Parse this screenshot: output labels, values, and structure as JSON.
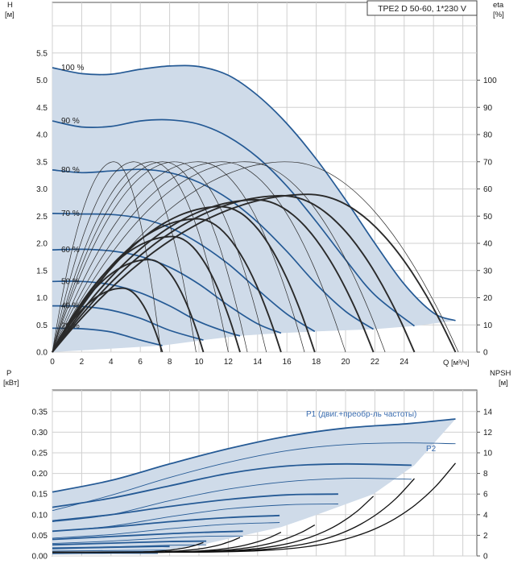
{
  "title": "TPE2 D 50-60, 1*230 V",
  "colors": {
    "envelope_fill": "#cfdbe9",
    "pump_curve": "#255a95",
    "eta_curve": "#2a2a2a",
    "grid": "#d0d0d0",
    "series_label": "#3b6db0"
  },
  "chart_data": [
    {
      "type": "line",
      "name": "head",
      "ylabel": "H",
      "yunit": "[м]",
      "y2label": "eta",
      "y2unit": "[%]",
      "xlabel": "Q",
      "xunit": "[м³/ч]",
      "xlim": [
        0,
        29
      ],
      "ylim": [
        0,
        6
      ],
      "y2lim": [
        0,
        120
      ],
      "grid": true,
      "x_ticks": [
        "0",
        "2",
        "4",
        "6",
        "8",
        "10",
        "12",
        "14",
        "16",
        "18",
        "20",
        "22",
        "24"
      ],
      "y_ticks": [
        "0.0",
        "0.5",
        "1.0",
        "1.5",
        "2.0",
        "2.5",
        "3.0",
        "3.5",
        "4.0",
        "4.5",
        "5.0",
        "5.5"
      ],
      "y2_ticks": [
        "0",
        "10",
        "20",
        "30",
        "40",
        "50",
        "60",
        "70",
        "80",
        "90",
        "100"
      ],
      "speed_curves": [
        {
          "label": "100 %",
          "points": [
            [
              0,
              5.23
            ],
            [
              2,
              5.12
            ],
            [
              4,
              5.11
            ],
            [
              6,
              5.2
            ],
            [
              8,
              5.26
            ],
            [
              10,
              5.25
            ],
            [
              12,
              5.09
            ],
            [
              14,
              4.72
            ],
            [
              16,
              4.2
            ],
            [
              18,
              3.55
            ],
            [
              20,
              2.8
            ],
            [
              22,
              2.0
            ],
            [
              24,
              1.25
            ],
            [
              26,
              0.72
            ],
            [
              27.5,
              0.58
            ]
          ]
        },
        {
          "label": "90 %",
          "points": [
            [
              0,
              4.25
            ],
            [
              2,
              4.14
            ],
            [
              4,
              4.15
            ],
            [
              6,
              4.25
            ],
            [
              8,
              4.27
            ],
            [
              10,
              4.19
            ],
            [
              12,
              3.96
            ],
            [
              14,
              3.58
            ],
            [
              16,
              3.05
            ],
            [
              18,
              2.4
            ],
            [
              20,
              1.7
            ],
            [
              22,
              1.05
            ],
            [
              24.7,
              0.48
            ]
          ]
        },
        {
          "label": "80 %",
          "points": [
            [
              0,
              3.35
            ],
            [
              2,
              3.3
            ],
            [
              4,
              3.33
            ],
            [
              6,
              3.36
            ],
            [
              8,
              3.3
            ],
            [
              10,
              3.12
            ],
            [
              12,
              2.82
            ],
            [
              14,
              2.39
            ],
            [
              16,
              1.85
            ],
            [
              18,
              1.25
            ],
            [
              20,
              0.75
            ],
            [
              21.9,
              0.42
            ]
          ]
        },
        {
          "label": "70 %",
          "points": [
            [
              0,
              2.55
            ],
            [
              2,
              2.54
            ],
            [
              4,
              2.53
            ],
            [
              6,
              2.46
            ],
            [
              8,
              2.29
            ],
            [
              10,
              2.0
            ],
            [
              12,
              1.62
            ],
            [
              14,
              1.15
            ],
            [
              16,
              0.7
            ],
            [
              17.9,
              0.38
            ]
          ]
        },
        {
          "label": "60 %",
          "points": [
            [
              0,
              1.88
            ],
            [
              2,
              1.89
            ],
            [
              4,
              1.86
            ],
            [
              6,
              1.76
            ],
            [
              8,
              1.56
            ],
            [
              10,
              1.25
            ],
            [
              12,
              0.86
            ],
            [
              14,
              0.52
            ],
            [
              15.6,
              0.35
            ]
          ]
        },
        {
          "label": "50 %",
          "points": [
            [
              0,
              1.3
            ],
            [
              2,
              1.3
            ],
            [
              4,
              1.24
            ],
            [
              6,
              1.09
            ],
            [
              8,
              0.85
            ],
            [
              10,
              0.56
            ],
            [
              12,
              0.36
            ],
            [
              12.8,
              0.3
            ]
          ]
        },
        {
          "label": "40 %",
          "points": [
            [
              0,
              0.85
            ],
            [
              2,
              0.84
            ],
            [
              4,
              0.77
            ],
            [
              6,
              0.62
            ],
            [
              8,
              0.4
            ],
            [
              10.3,
              0.22
            ]
          ]
        },
        {
          "label": "29 %",
          "points": [
            [
              0,
              0.44
            ],
            [
              2,
              0.43
            ],
            [
              4,
              0.37
            ],
            [
              6,
              0.22
            ],
            [
              7.5,
              0.12
            ]
          ]
        }
      ],
      "envelope_top": [
        [
          0,
          5.23
        ],
        [
          2,
          5.12
        ],
        [
          4,
          5.11
        ],
        [
          6,
          5.2
        ],
        [
          8,
          5.26
        ],
        [
          10,
          5.25
        ],
        [
          12,
          5.09
        ],
        [
          14,
          4.72
        ],
        [
          16,
          4.2
        ],
        [
          18,
          3.55
        ],
        [
          20,
          2.8
        ],
        [
          22,
          2.0
        ],
        [
          24,
          1.25
        ],
        [
          26,
          0.72
        ],
        [
          27.5,
          0.58
        ]
      ],
      "envelope_bottom": [
        [
          27.5,
          0.58
        ],
        [
          24.7,
          0.48
        ],
        [
          21.9,
          0.42
        ],
        [
          17.9,
          0.38
        ],
        [
          15.6,
          0.35
        ],
        [
          12.8,
          0.3
        ],
        [
          10.3,
          0.22
        ],
        [
          7.5,
          0.12
        ],
        [
          0,
          0
        ]
      ],
      "eta_curves": [
        {
          "qmax": 7.5,
          "peak": 23.5,
          "xpeak": 4.8,
          "bold": true
        },
        {
          "qmax": 10.3,
          "peak": 34,
          "xpeak": 6.6,
          "bold": true
        },
        {
          "qmax": 12.8,
          "peak": 42.5,
          "xpeak": 8.2,
          "bold": true
        },
        {
          "qmax": 15.6,
          "peak": 49,
          "xpeak": 9.9,
          "bold": true
        },
        {
          "qmax": 17.9,
          "peak": 53.5,
          "xpeak": 11.5,
          "bold": true
        },
        {
          "qmax": 21.9,
          "peak": 56,
          "xpeak": 13.9,
          "bold": true
        },
        {
          "qmax": 24.7,
          "peak": 57.5,
          "xpeak": 15.7,
          "bold": true
        },
        {
          "qmax": 27.5,
          "peak": 58,
          "xpeak": 17.5,
          "bold": true
        },
        {
          "qmax": 7.4,
          "peak": 70,
          "xpeak": 4.2,
          "bold": false
        },
        {
          "qmax": 9.8,
          "peak": 70,
          "xpeak": 5.6,
          "bold": false
        },
        {
          "qmax": 12.0,
          "peak": 70,
          "xpeak": 6.8,
          "bold": false
        },
        {
          "qmax": 13.3,
          "peak": 70,
          "xpeak": 7.6,
          "bold": false
        },
        {
          "qmax": 14.6,
          "peak": 70,
          "xpeak": 8.4,
          "bold": false
        },
        {
          "qmax": 17.2,
          "peak": 70,
          "xpeak": 10.0,
          "bold": false
        },
        {
          "qmax": 20.0,
          "peak": 70,
          "xpeak": 11.6,
          "bold": false
        },
        {
          "qmax": 22.7,
          "peak": 70,
          "xpeak": 13.2,
          "bold": false
        },
        {
          "qmax": 27.7,
          "peak": 70,
          "xpeak": 16.0,
          "bold": false
        }
      ]
    },
    {
      "type": "line",
      "name": "power",
      "ylabel": "P",
      "yunit": "[кВт]",
      "y2label": "NPSH",
      "y2unit": "[м]",
      "xlim": [
        0,
        29
      ],
      "ylim": [
        0,
        0.4
      ],
      "y2lim": [
        0,
        16
      ],
      "grid": true,
      "y_ticks": [
        "0.00",
        "0.05",
        "0.10",
        "0.15",
        "0.20",
        "0.25",
        "0.30",
        "0.35"
      ],
      "y2_ticks": [
        "0",
        "2",
        "4",
        "6",
        "8",
        "10",
        "12",
        "14"
      ],
      "labels": {
        "p1": "P1 (двиг.+преобр-ль частоты)",
        "p2": "P2"
      },
      "p1_curves": [
        {
          "points": [
            [
              0,
              0.155
            ],
            [
              4,
              0.183
            ],
            [
              8,
              0.223
            ],
            [
              12,
              0.26
            ],
            [
              16,
              0.29
            ],
            [
              20,
              0.31
            ],
            [
              24,
              0.32
            ],
            [
              27.5,
              0.332
            ]
          ]
        },
        {
          "points": [
            [
              0,
              0.118
            ],
            [
              4,
              0.14
            ],
            [
              8,
              0.17
            ],
            [
              12,
              0.2
            ],
            [
              16,
              0.218
            ],
            [
              20,
              0.223
            ],
            [
              24.5,
              0.22
            ]
          ]
        },
        {
          "points": [
            [
              0,
              0.085
            ],
            [
              4,
              0.1
            ],
            [
              8,
              0.12
            ],
            [
              12,
              0.137
            ],
            [
              16,
              0.148
            ],
            [
              19.5,
              0.15
            ]
          ]
        },
        {
          "points": [
            [
              0,
              0.06
            ],
            [
              4,
              0.07
            ],
            [
              8,
              0.083
            ],
            [
              12,
              0.093
            ],
            [
              15.5,
              0.098
            ]
          ]
        },
        {
          "points": [
            [
              0,
              0.04
            ],
            [
              4,
              0.047
            ],
            [
              8,
              0.054
            ],
            [
              11,
              0.058
            ],
            [
              13,
              0.06
            ]
          ]
        },
        {
          "points": [
            [
              0,
              0.027
            ],
            [
              4,
              0.031
            ],
            [
              8,
              0.035
            ],
            [
              10.5,
              0.036
            ]
          ]
        },
        {
          "points": [
            [
              0,
              0.018
            ],
            [
              4,
              0.021
            ],
            [
              7,
              0.023
            ],
            [
              8,
              0.023
            ]
          ]
        },
        {
          "points": [
            [
              0,
              0.008
            ],
            [
              3,
              0.009
            ],
            [
              6,
              0.01
            ],
            [
              7.2,
              0.01
            ]
          ]
        }
      ],
      "p2_curves": [
        {
          "points": [
            [
              0,
              0.11
            ],
            [
              4,
              0.147
            ],
            [
              8,
              0.19
            ],
            [
              12,
              0.227
            ],
            [
              16,
              0.255
            ],
            [
              20,
              0.27
            ],
            [
              24,
              0.274
            ],
            [
              27.5,
              0.272
            ]
          ]
        },
        {
          "points": [
            [
              0,
              0.083
            ],
            [
              4,
              0.1
            ],
            [
              8,
              0.134
            ],
            [
              12,
              0.162
            ],
            [
              16,
              0.18
            ],
            [
              20,
              0.188
            ],
            [
              24.5,
              0.186
            ]
          ]
        },
        {
          "points": [
            [
              0,
              0.06
            ],
            [
              4,
              0.072
            ],
            [
              8,
              0.095
            ],
            [
              12,
              0.114
            ],
            [
              16,
              0.124
            ],
            [
              19.5,
              0.126
            ]
          ]
        },
        {
          "points": [
            [
              0,
              0.043
            ],
            [
              4,
              0.052
            ],
            [
              8,
              0.066
            ],
            [
              12,
              0.077
            ],
            [
              15.5,
              0.081
            ]
          ]
        },
        {
          "points": [
            [
              0,
              0.03
            ],
            [
              4,
              0.036
            ],
            [
              8,
              0.044
            ],
            [
              11,
              0.048
            ],
            [
              13,
              0.048
            ]
          ]
        },
        {
          "points": [
            [
              0,
              0.02
            ],
            [
              4,
              0.022
            ],
            [
              8,
              0.026
            ],
            [
              10.5,
              0.027
            ]
          ]
        },
        {
          "points": [
            [
              0,
              0.012
            ],
            [
              4,
              0.013
            ],
            [
              7,
              0.014
            ],
            [
              8,
              0.014
            ]
          ]
        },
        {
          "points": [
            [
              0,
              0.005
            ],
            [
              3,
              0.006
            ],
            [
              6,
              0.006
            ],
            [
              7.2,
              0.006
            ]
          ]
        }
      ],
      "envelope_top": [
        [
          0,
          0.155
        ],
        [
          4,
          0.183
        ],
        [
          8,
          0.223
        ],
        [
          12,
          0.26
        ],
        [
          16,
          0.29
        ],
        [
          20,
          0.31
        ],
        [
          24,
          0.32
        ],
        [
          27.5,
          0.332
        ]
      ],
      "envelope_bottom": [
        [
          27.5,
          0.332
        ],
        [
          24.7,
          0.22
        ],
        [
          21.9,
          0.15
        ],
        [
          17.9,
          0.098
        ],
        [
          15.6,
          0.07
        ],
        [
          12.8,
          0.048
        ],
        [
          10.3,
          0.028
        ],
        [
          7.5,
          0.012
        ],
        [
          0,
          0.005
        ]
      ],
      "npsh_curves": [
        {
          "qmax": 10.3,
          "npsh_end": 1.3
        },
        {
          "qmax": 12.8,
          "npsh_end": 1.8
        },
        {
          "qmax": 15.6,
          "npsh_end": 2.3
        },
        {
          "qmax": 17.9,
          "npsh_end": 3.0
        },
        {
          "qmax": 21.9,
          "npsh_end": 5.8
        },
        {
          "qmax": 24.7,
          "npsh_end": 7.5
        },
        {
          "qmax": 27.5,
          "npsh_end": 9.0
        }
      ]
    }
  ]
}
